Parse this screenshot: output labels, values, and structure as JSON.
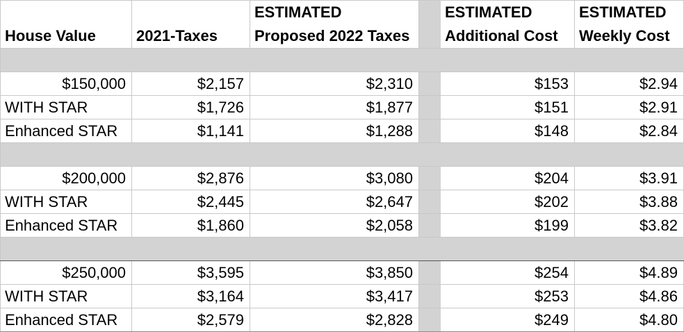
{
  "header": {
    "row1": [
      "",
      "",
      "ESTIMATED",
      "ESTIMATED",
      "ESTIMATED"
    ],
    "row2": [
      "House Value",
      "2021-Taxes",
      "Proposed 2022 Taxes",
      "Additional Cost",
      "Weekly Cost"
    ]
  },
  "groups": [
    {
      "rows": [
        {
          "label": "$150,000",
          "t2021": "$2,157",
          "t2022": "$2,310",
          "additional": "$153",
          "weekly": "$2.94"
        },
        {
          "label": "WITH STAR",
          "t2021": "$1,726",
          "t2022": "$1,877",
          "additional": "$151",
          "weekly": "$2.91"
        },
        {
          "label": "Enhanced STAR",
          "t2021": "$1,141",
          "t2022": "$1,288",
          "additional": "$148",
          "weekly": "$2.84"
        }
      ]
    },
    {
      "rows": [
        {
          "label": "$200,000",
          "t2021": "$2,876",
          "t2022": "$3,080",
          "additional": "$204",
          "weekly": "$3.91"
        },
        {
          "label": "WITH STAR",
          "t2021": "$2,445",
          "t2022": "$2,647",
          "additional": "$202",
          "weekly": "$3.88"
        },
        {
          "label": "Enhanced STAR",
          "t2021": "$1,860",
          "t2022": "$2,058",
          "additional": "$199",
          "weekly": "$3.82"
        }
      ]
    },
    {
      "rows": [
        {
          "label": "$250,000",
          "t2021": "$3,595",
          "t2022": "$3,850",
          "additional": "$254",
          "weekly": "$4.89"
        },
        {
          "label": "WITH STAR",
          "t2021": "$3,164",
          "t2022": "$3,417",
          "additional": "$253",
          "weekly": "$4.86"
        },
        {
          "label": "Enhanced STAR",
          "t2021": "$2,579",
          "t2022": "$2,828",
          "additional": "$249",
          "weekly": "$4.80"
        }
      ]
    }
  ],
  "colors": {
    "band": "#d3d3d3",
    "grid": "#c8c8c8"
  }
}
